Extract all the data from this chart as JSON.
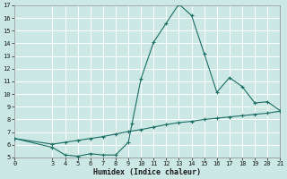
{
  "xlabel": "Humidex (Indice chaleur)",
  "background_color": "#cce8e4",
  "grid_color": "#b0d8d4",
  "line_color": "#1a6e65",
  "xlim": [
    0,
    21
  ],
  "ylim": [
    5,
    17
  ],
  "xticks": [
    0,
    3,
    4,
    5,
    6,
    7,
    8,
    9,
    10,
    11,
    12,
    13,
    14,
    15,
    16,
    17,
    18,
    19,
    20,
    21
  ],
  "yticks": [
    5,
    6,
    7,
    8,
    9,
    10,
    11,
    12,
    13,
    14,
    15,
    16,
    17
  ],
  "line1_x": [
    0,
    3,
    4,
    5,
    6,
    7,
    8,
    9,
    9.3,
    10,
    11,
    12,
    13,
    14,
    15,
    16,
    17,
    18,
    19,
    20,
    21
  ],
  "line1_y": [
    6.5,
    5.8,
    5.2,
    5.1,
    5.3,
    5.2,
    5.2,
    6.2,
    7.7,
    11.2,
    14.1,
    15.6,
    17.1,
    16.2,
    13.2,
    10.15,
    11.3,
    10.6,
    9.3,
    9.4,
    8.7
  ],
  "line2_x": [
    0,
    3,
    4,
    5,
    6,
    7,
    8,
    9,
    10,
    11,
    12,
    13,
    14,
    15,
    16,
    17,
    18,
    19,
    20,
    21
  ],
  "line2_y": [
    6.5,
    6.05,
    6.2,
    6.35,
    6.5,
    6.65,
    6.85,
    7.05,
    7.2,
    7.4,
    7.6,
    7.75,
    7.85,
    8.0,
    8.1,
    8.2,
    8.3,
    8.4,
    8.5,
    8.65
  ]
}
